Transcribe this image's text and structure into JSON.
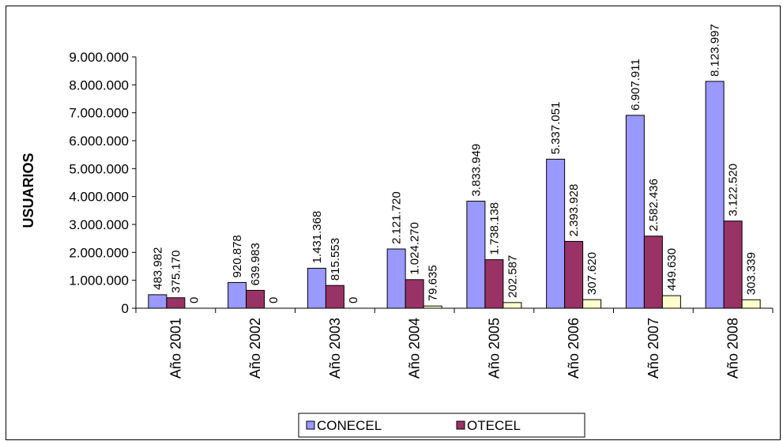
{
  "chart_data": {
    "type": "bar",
    "ylabel": "USUARIOS",
    "ylim": [
      0,
      9000000
    ],
    "y_ticks": [
      0,
      1000000,
      2000000,
      3000000,
      4000000,
      5000000,
      6000000,
      7000000,
      8000000,
      9000000
    ],
    "y_tick_labels": [
      "0",
      "1.000.000",
      "2.000.000",
      "3.000.000",
      "4.000.000",
      "5.000.000",
      "6.000.000",
      "7.000.000",
      "8.000.000",
      "9.000.000"
    ],
    "categories": [
      "Año 2001",
      "Año 2002",
      "Año 2003",
      "Año 2004",
      "Año 2005",
      "Año 2006",
      "Año 2007",
      "Año 2008"
    ],
    "grid": false,
    "legend_position": "bottom",
    "series": [
      {
        "name": "CONECEL",
        "color": "#9999ff",
        "values": [
          483982,
          920878,
          1431368,
          2121720,
          3833949,
          5337051,
          6907911,
          8123997
        ],
        "labels": [
          "483.982",
          "920.878",
          "1.431.368",
          "2.121.720",
          "3.833.949",
          "5.337.051",
          "6.907.911",
          "8.123.997"
        ]
      },
      {
        "name": "OTECEL",
        "color": "#993366",
        "values": [
          375170,
          639983,
          815553,
          1024270,
          1738138,
          2393928,
          2582436,
          3122520
        ],
        "labels": [
          "375.170",
          "639.983",
          "815.553",
          "1.024.270",
          "1.738.138",
          "2.393.928",
          "2.582.436",
          "3.122.520"
        ]
      },
      {
        "color": "#ffffcc",
        "values": [
          0,
          0,
          0,
          79635,
          202587,
          307620,
          449630,
          303339
        ],
        "labels": [
          "0",
          "0",
          "0",
          "79.635",
          "202.587",
          "307.620",
          "449.630",
          "303.339"
        ]
      }
    ]
  }
}
